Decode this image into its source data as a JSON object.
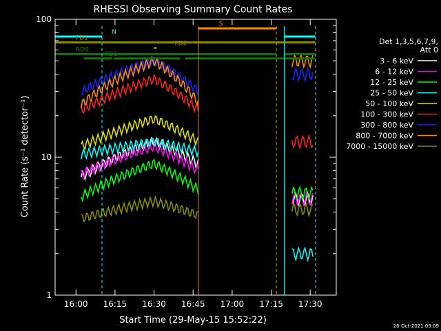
{
  "chart_data": {
    "type": "line",
    "title": "RHESSI Observing Summary Count Rates",
    "xlabel": "Start Time (29-May-15 15:52:22)",
    "ylabel": "Count Rate (s⁻¹ detector⁻¹)",
    "ylim": [
      1,
      100
    ],
    "yscale": "log",
    "xlim_min": [
      -8,
      100
    ],
    "x_ticks": [
      {
        "min": 0,
        "label": "16:00"
      },
      {
        "min": 15,
        "label": "16:15"
      },
      {
        "min": 30,
        "label": "16:30"
      },
      {
        "min": 45,
        "label": "16:45"
      },
      {
        "min": 60,
        "label": "17:00"
      },
      {
        "min": 75,
        "label": "17:15"
      },
      {
        "min": 90,
        "label": "17:30"
      }
    ],
    "y_ticks": [
      {
        "value": 1,
        "label": "1"
      },
      {
        "value": 10,
        "label": "10"
      },
      {
        "value": 100,
        "label": "100"
      }
    ],
    "legend_title": [
      "Det 1,3,5,6,7,9,",
      "Att 0"
    ],
    "series": [
      {
        "name": "3 - 6 keV",
        "color": "#ffffff"
      },
      {
        "name": "6 - 12 keV",
        "color": "#ff00ff"
      },
      {
        "name": "12 - 25 keV",
        "color": "#00ff00"
      },
      {
        "name": "25 - 50 keV",
        "color": "#00ffff"
      },
      {
        "name": "50 - 100 keV",
        "color": "#e0e000"
      },
      {
        "name": "100 - 300 keV",
        "color": "#ff2020"
      },
      {
        "name": "300 - 800 keV",
        "color": "#2020ff"
      },
      {
        "name": "800 - 7000 keV",
        "color": "#ff8c00"
      },
      {
        "name": "7000 - 15000 keV",
        "color": "#8c8c00"
      }
    ],
    "flags": [
      {
        "label": "N",
        "color": "#00ffff",
        "segments": [
          [
            -8,
            10
          ],
          [
            80,
            92
          ]
        ],
        "level": 75
      },
      {
        "label": "S",
        "color": "#ff8c00",
        "segments": [
          [
            47,
            77
          ]
        ],
        "level": 86
      },
      {
        "label": "FD1",
        "color": "#8c8c00",
        "segments": [
          [
            -8,
            92
          ]
        ],
        "level": 68
      },
      {
        "label": "FD2",
        "color": "#8c8c00",
        "segments": [
          [
            30,
            31
          ]
        ],
        "level": 62
      },
      {
        "label": "RD0",
        "color": "#008000",
        "segments": [
          [
            -8,
            77
          ],
          [
            80,
            92
          ]
        ],
        "level": 56
      },
      {
        "label": "RD1",
        "color": "#008000",
        "segments": [
          [
            3,
            14
          ],
          [
            14.5,
            40
          ],
          [
            42,
            92
          ]
        ],
        "level": 52
      }
    ],
    "timestamp": "26-Oct-2021 09:09"
  }
}
